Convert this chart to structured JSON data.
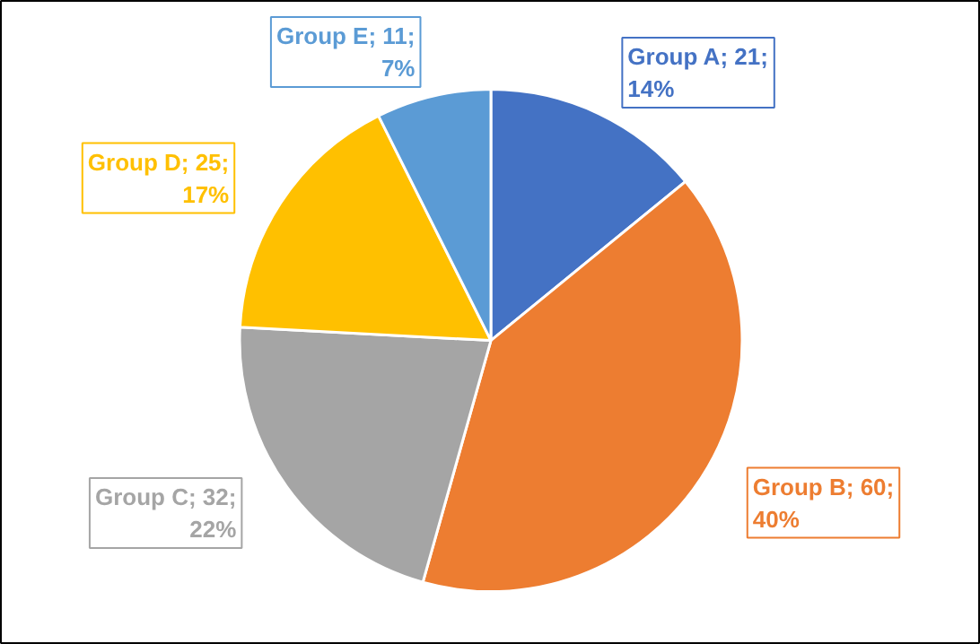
{
  "chart_data": {
    "type": "pie",
    "categories": [
      "Group A; 21; 14%",
      "Group B; 60; 40%",
      "Group C; 32; 22%",
      "Group D; 25; 17%",
      "Group E; 11; 7%"
    ],
    "values": [
      21,
      60,
      32,
      25,
      11
    ],
    "colors": [
      "#4472c4",
      "#ed7d31",
      "#a5a5a5",
      "#ffc000",
      "#5b9bd5"
    ]
  }
}
